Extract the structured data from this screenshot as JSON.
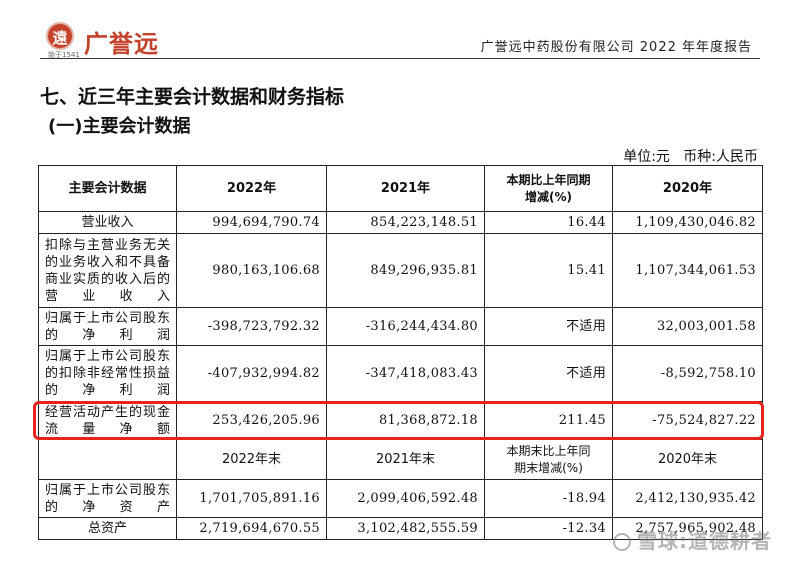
{
  "header": {
    "logo_char": "遠",
    "logo_text": "广誉远",
    "logo_sub": "始于1541",
    "report_title": "广誉远中药股份有限公司 2022 年年度报告"
  },
  "section_title": "七、近三年主要会计数据和财务指标",
  "subsection_title": "(一)主要会计数据",
  "unit_line": "单位:元   币种:人民币",
  "table": {
    "header1": {
      "label": "主要会计数据",
      "y2022": "2022年",
      "y2021": "2021年",
      "change_line1": "本期比上年同期",
      "change_line2": "增减(%)",
      "y2020": "2020年"
    },
    "rows1": [
      {
        "label": "营业收入",
        "v2022": "994,694,790.74",
        "v2021": "854,223,148.51",
        "change": "16.44",
        "v2020": "1,109,430,046.82"
      },
      {
        "label": "扣除与主营业务无关的业务收入和不具备商业实质的收入后的营业收入",
        "v2022": "980,163,106.68",
        "v2021": "849,296,935.81",
        "change": "15.41",
        "v2020": "1,107,344,061.53"
      },
      {
        "label": "归属于上市公司股东的净利润",
        "v2022": "-398,723,792.32",
        "v2021": "-316,244,434.80",
        "change": "不适用",
        "v2020": "32,003,001.58"
      },
      {
        "label": "归属于上市公司股东的扣除非经常性损益的净利润",
        "v2022": "-407,932,994.82",
        "v2021": "-347,418,083.43",
        "change": "不适用",
        "v2020": "-8,592,758.10"
      },
      {
        "label": "经营活动产生的现金流量净额",
        "v2022": "253,426,205.96",
        "v2021": "81,368,872.18",
        "change": "211.45",
        "v2020": "-75,524,827.22"
      }
    ],
    "header2": {
      "y2022": "2022年末",
      "y2021": "2021年末",
      "change_line1": "本期末比上年同",
      "change_line2": "期末增减(%)",
      "y2020": "2020年末"
    },
    "rows2": [
      {
        "label": "归属于上市公司股东的净资产",
        "v2022": "1,701,705,891.16",
        "v2021": "2,099,406,592.48",
        "change": "-18.94",
        "v2020": "2,412,130,935.42"
      },
      {
        "label": "总资产",
        "v2022": "2,719,694,670.55",
        "v2021": "3,102,482,555.59",
        "change": "-12.34",
        "v2020": "2,757,965,902.48"
      }
    ]
  },
  "watermark": "雪球:道德耕者"
}
